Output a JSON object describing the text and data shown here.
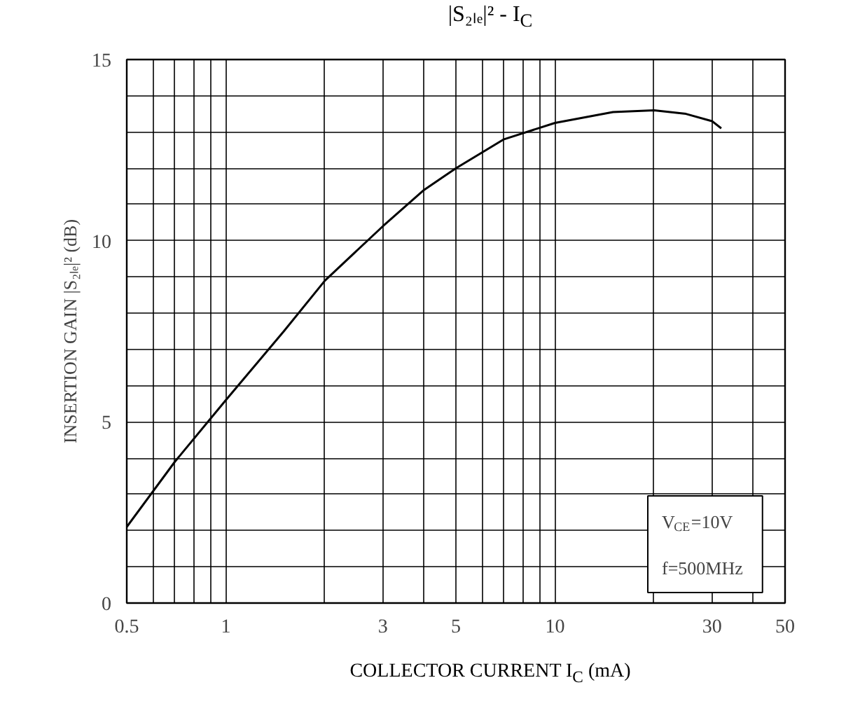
{
  "chart_data": {
    "type": "line",
    "title": "|S₂ₗₑ|² - I$_{C}$",
    "xlabel": "COLLECTOR CURRENT I$_{C}$ (mA)",
    "ylabel": "INSERTION GAIN |S₂ₗₑ|² (dB)",
    "x": [
      0.5,
      0.7,
      1,
      1.5,
      2,
      3,
      4,
      5,
      7,
      10,
      15,
      20,
      25,
      30,
      32
    ],
    "series": [
      {
        "color": "#000000",
        "values": [
          2.1,
          3.9,
          5.6,
          7.5,
          8.9,
          10.4,
          11.4,
          12.0,
          12.8,
          13.25,
          13.55,
          13.6,
          13.5,
          13.3,
          13.1
        ]
      }
    ],
    "log": "x",
    "xlim": [
      0.5,
      50
    ],
    "ylim": [
      0,
      15
    ],
    "xticks": [
      0.5,
      {
        "value": 0.6,
        "label": null
      },
      {
        "value": 0.7,
        "label": null
      },
      {
        "value": 0.8,
        "label": null
      },
      {
        "value": 0.9,
        "label": null
      },
      1,
      {
        "value": 2,
        "label": null
      },
      3,
      {
        "value": 4,
        "label": null
      },
      5,
      {
        "value": 6,
        "label": null
      },
      {
        "value": 7,
        "label": null
      },
      {
        "value": 8,
        "label": null
      },
      {
        "value": 9,
        "label": null
      },
      10,
      {
        "value": 20,
        "label": null
      },
      30,
      {
        "value": 40,
        "label": null
      },
      50
    ],
    "yticks": [
      0,
      {
        "value": 1,
        "label": null
      },
      {
        "value": 2,
        "label": null
      },
      {
        "value": 3,
        "label": null
      },
      {
        "value": 4,
        "label": null
      },
      5,
      {
        "value": 6,
        "label": null
      },
      {
        "value": 7,
        "label": null
      },
      {
        "value": 8,
        "label": null
      },
      {
        "value": 9,
        "label": null
      },
      10,
      {
        "value": 11,
        "label": null
      },
      {
        "value": 12,
        "label": null
      },
      {
        "value": 13,
        "label": null
      },
      {
        "value": 14,
        "label": null
      },
      15
    ],
    "grid": true,
    "marker": "none",
    "line_style": "solid",
    "annotations": [
      "V$_{CE}$=10V",
      "f=500MHz"
    ]
  }
}
